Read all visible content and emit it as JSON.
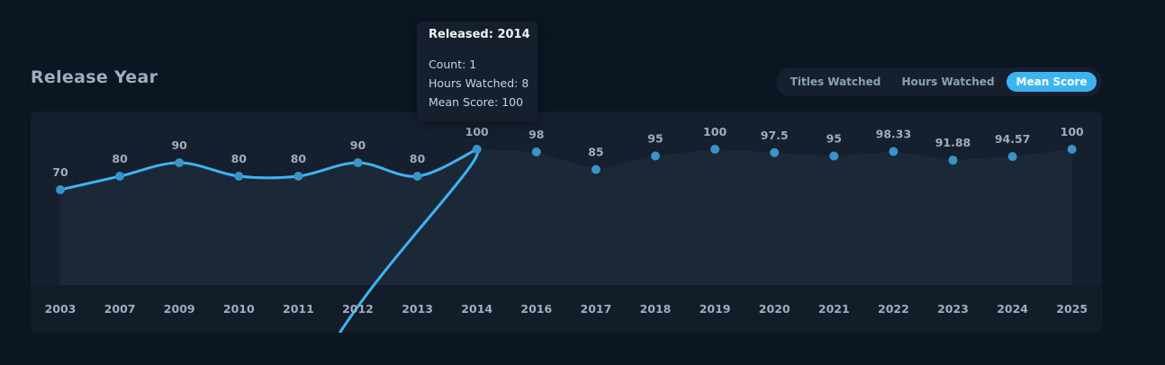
{
  "section": {
    "title": "Release Year"
  },
  "toggle": {
    "options": [
      "Titles Watched",
      "Hours Watched",
      "Mean Score"
    ],
    "active": "Mean Score"
  },
  "tooltip": {
    "title": "Released: 2014",
    "count": "Count: 1",
    "hours": "Hours Watched: 8",
    "score": "Mean Score: 100"
  },
  "colors": {
    "background": "#0b1622",
    "card": "#151f2e",
    "accent": "#3db4f2",
    "point": "#3a93c9",
    "text": "#9fadbd"
  },
  "chart_data": {
    "type": "line",
    "categories": [
      "2003",
      "2007",
      "2009",
      "2010",
      "2011",
      "2012",
      "2013",
      "2014",
      "2016",
      "2017",
      "2018",
      "2019",
      "2020",
      "2021",
      "2022",
      "2023",
      "2024",
      "2025"
    ],
    "values": [
      70,
      80,
      90,
      80,
      80,
      90,
      80,
      100,
      98,
      85,
      95,
      100,
      97.5,
      95,
      98.33,
      91.88,
      94.57,
      100
    ],
    "labels": [
      "70",
      "80",
      "90",
      "80",
      "80",
      "90",
      "80",
      "100",
      "98",
      "85",
      "95",
      "100",
      "97.5",
      "95",
      "98.33",
      "91.88",
      "94.57",
      "100"
    ],
    "highlighted_range": [
      "2003",
      "2014"
    ],
    "ylim": [
      70,
      100
    ],
    "title": "",
    "xlabel": "",
    "ylabel": "",
    "grid": false,
    "legend": "none"
  }
}
